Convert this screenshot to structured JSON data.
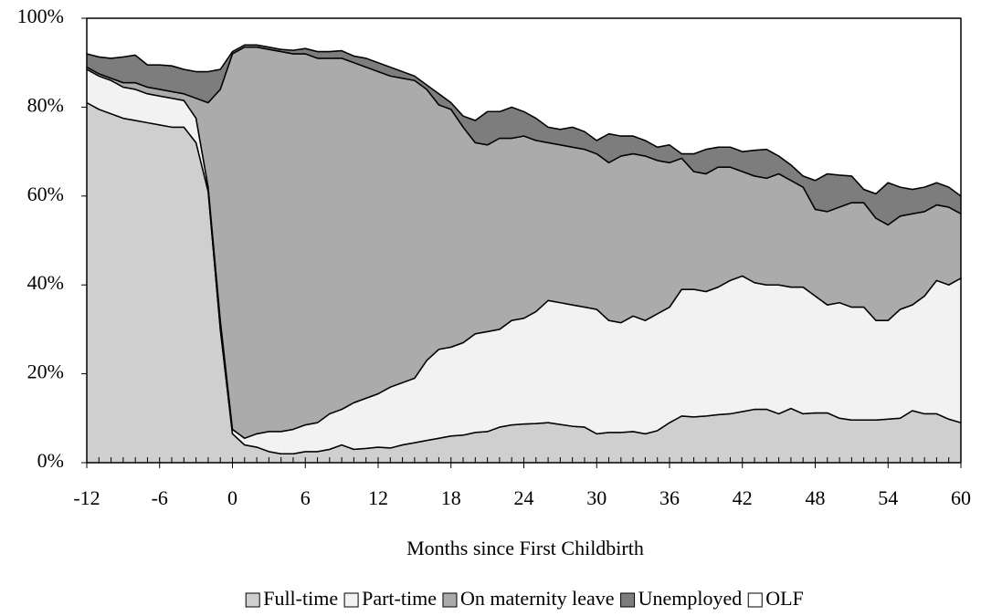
{
  "chart_data": {
    "type": "stacked-area",
    "x_label": "Months since First Childbirth",
    "x": [
      -12,
      -11,
      -10,
      -9,
      -8,
      -7,
      -6,
      -5,
      -4,
      -3,
      -2,
      -1,
      0,
      1,
      2,
      3,
      4,
      5,
      6,
      7,
      8,
      9,
      10,
      11,
      12,
      13,
      14,
      15,
      16,
      17,
      18,
      19,
      20,
      21,
      22,
      23,
      24,
      25,
      26,
      27,
      28,
      29,
      30,
      31,
      32,
      33,
      34,
      35,
      36,
      37,
      38,
      39,
      40,
      41,
      42,
      43,
      44,
      45,
      46,
      47,
      48,
      49,
      50,
      51,
      52,
      53,
      54,
      55,
      56,
      57,
      58,
      59,
      60
    ],
    "xlim": [
      -12,
      60
    ],
    "xticks": [
      -12,
      -6,
      0,
      6,
      12,
      18,
      24,
      30,
      36,
      42,
      48,
      54,
      60
    ],
    "ylim": [
      0,
      100
    ],
    "yticks": [
      {
        "value": 0,
        "label": "0%"
      },
      {
        "value": 20,
        "label": "20%"
      },
      {
        "value": 40,
        "label": "40%"
      },
      {
        "value": 60,
        "label": "60%"
      },
      {
        "value": 80,
        "label": "80%"
      },
      {
        "value": 100,
        "label": "100%"
      }
    ],
    "legend": "bottom",
    "series": [
      {
        "name": "Full-time",
        "color": "#cfcfcf",
        "values": [
          81,
          79.5,
          78.5,
          77.5,
          77,
          76.5,
          76,
          75.5,
          75.5,
          72,
          61,
          30,
          6.5,
          4,
          3.5,
          2.5,
          2,
          2,
          2.5,
          2.5,
          3,
          4,
          3,
          3.2,
          3.5,
          3.3,
          4,
          4.5,
          5,
          5.5,
          6,
          6.2,
          6.8,
          7,
          8,
          8.5,
          8.7,
          8.8,
          9,
          8.6,
          8.2,
          8,
          6.5,
          6.8,
          6.8,
          7,
          6.5,
          7.2,
          9,
          10.5,
          10.3,
          10.5,
          10.8,
          11,
          11.5,
          12,
          12,
          11,
          12.2,
          11,
          11.2,
          11.2,
          10,
          9.6,
          9.6,
          9.6,
          9.8,
          10,
          11.7,
          11,
          11,
          9.8,
          9
        ]
      },
      {
        "name": "Part-time",
        "color": "#f2f2f2",
        "values": [
          7.5,
          7.5,
          7.5,
          7,
          7,
          6.5,
          6.5,
          6.5,
          6,
          5.5,
          1,
          2,
          1,
          1.5,
          3,
          4.5,
          5,
          5.5,
          6,
          6.5,
          8,
          8,
          10.5,
          11.3,
          12,
          13.7,
          14,
          14.5,
          18,
          20,
          20,
          20.8,
          22.2,
          22.5,
          22,
          23.5,
          23.8,
          25.2,
          27.5,
          27.4,
          27.3,
          27,
          28,
          25.2,
          24.7,
          26,
          25.5,
          26.3,
          26,
          28.5,
          28.7,
          28,
          28.7,
          30,
          30.5,
          28.5,
          28,
          29,
          27.3,
          28.5,
          26.3,
          24.3,
          26,
          25.4,
          25.4,
          22.4,
          22.2,
          24.5,
          23.8,
          26.5,
          30,
          30.2,
          32.5
        ]
      },
      {
        "name": "On maternity leave",
        "color": "#ababab",
        "values": [
          0.5,
          0.5,
          0.5,
          1,
          1.5,
          1.5,
          1.5,
          1.5,
          1.5,
          4.5,
          19,
          52,
          84.5,
          88,
          87,
          86,
          85.5,
          84.5,
          83.5,
          82,
          80,
          79,
          76.5,
          74.5,
          72.5,
          70,
          68.5,
          67,
          61,
          55,
          53.5,
          48.5,
          43,
          42,
          43,
          41,
          41,
          38.5,
          35.5,
          35.5,
          35.5,
          35.5,
          35,
          35.5,
          37.5,
          36.5,
          37,
          34.5,
          32.5,
          29.5,
          26.5,
          26.5,
          27,
          25.5,
          23.5,
          24,
          24,
          25,
          24,
          22.5,
          19.5,
          21,
          21.5,
          23.5,
          23.5,
          23,
          21.5,
          21,
          20.5,
          19,
          17,
          17.5,
          14.5
        ]
      },
      {
        "name": "Unemployed",
        "color": "#7d7d7d",
        "values": [
          3,
          3.8,
          4.5,
          5.8,
          6.2,
          5,
          5.5,
          5.8,
          5.5,
          6,
          7,
          4.5,
          0.5,
          0.5,
          0.5,
          0.5,
          0.5,
          0.8,
          1.2,
          1.5,
          1.5,
          1.7,
          1.5,
          2,
          2,
          2,
          1.5,
          1,
          1,
          2.5,
          1.5,
          2.5,
          5,
          7.5,
          6,
          7,
          5.5,
          5,
          3.5,
          3.5,
          4.5,
          4,
          3,
          6.5,
          4.5,
          4,
          3.5,
          3,
          4,
          1,
          4,
          5.5,
          4.5,
          4.5,
          4.5,
          5.8,
          6.5,
          4,
          3.5,
          2.5,
          6.5,
          8.5,
          7.2,
          6,
          3,
          5.5,
          9.5,
          6.5,
          5.5,
          5.5,
          5,
          4.5,
          4
        ]
      },
      {
        "name": "OLF",
        "color": "#ffffff",
        "values": [
          8,
          8.7,
          9,
          8.7,
          8.3,
          10.5,
          10.5,
          10.7,
          11.5,
          12,
          12,
          11.5,
          7.5,
          6,
          6,
          6.5,
          7,
          7.2,
          6.8,
          7.5,
          7.5,
          7.3,
          8.5,
          9,
          10,
          11,
          12,
          13,
          15,
          17,
          19,
          22,
          23,
          21,
          21,
          20,
          21,
          22.5,
          24.5,
          25,
          24.5,
          25.5,
          27.5,
          26,
          26.5,
          26.5,
          27.5,
          29,
          28.5,
          30.5,
          30.5,
          29.5,
          29,
          29,
          30,
          29.7,
          29.5,
          31,
          33,
          35.5,
          36.5,
          35,
          35.3,
          35.5,
          38.5,
          39.5,
          37,
          38,
          38.5,
          38,
          37,
          38,
          40
        ]
      }
    ]
  }
}
